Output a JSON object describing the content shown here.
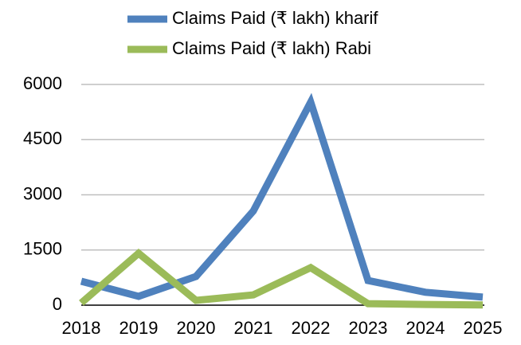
{
  "chart_data": {
    "type": "line",
    "categories": [
      "2018",
      "2019",
      "2020",
      "2021",
      "2022",
      "2023",
      "2024",
      "2025"
    ],
    "series": [
      {
        "name": "Claims Paid (₹ lakh) kharif",
        "color": "#4f81bd",
        "values": [
          650,
          240,
          780,
          2560,
          5520,
          670,
          350,
          220
        ]
      },
      {
        "name": "Claims Paid (₹ lakh) Rabi",
        "color": "#9bbb59",
        "values": [
          60,
          1410,
          130,
          280,
          1020,
          40,
          20,
          5
        ]
      }
    ],
    "ylim": [
      0,
      6000
    ],
    "yticks": [
      0,
      1500,
      3000,
      4500,
      6000
    ],
    "grid": true,
    "legend": "top"
  }
}
